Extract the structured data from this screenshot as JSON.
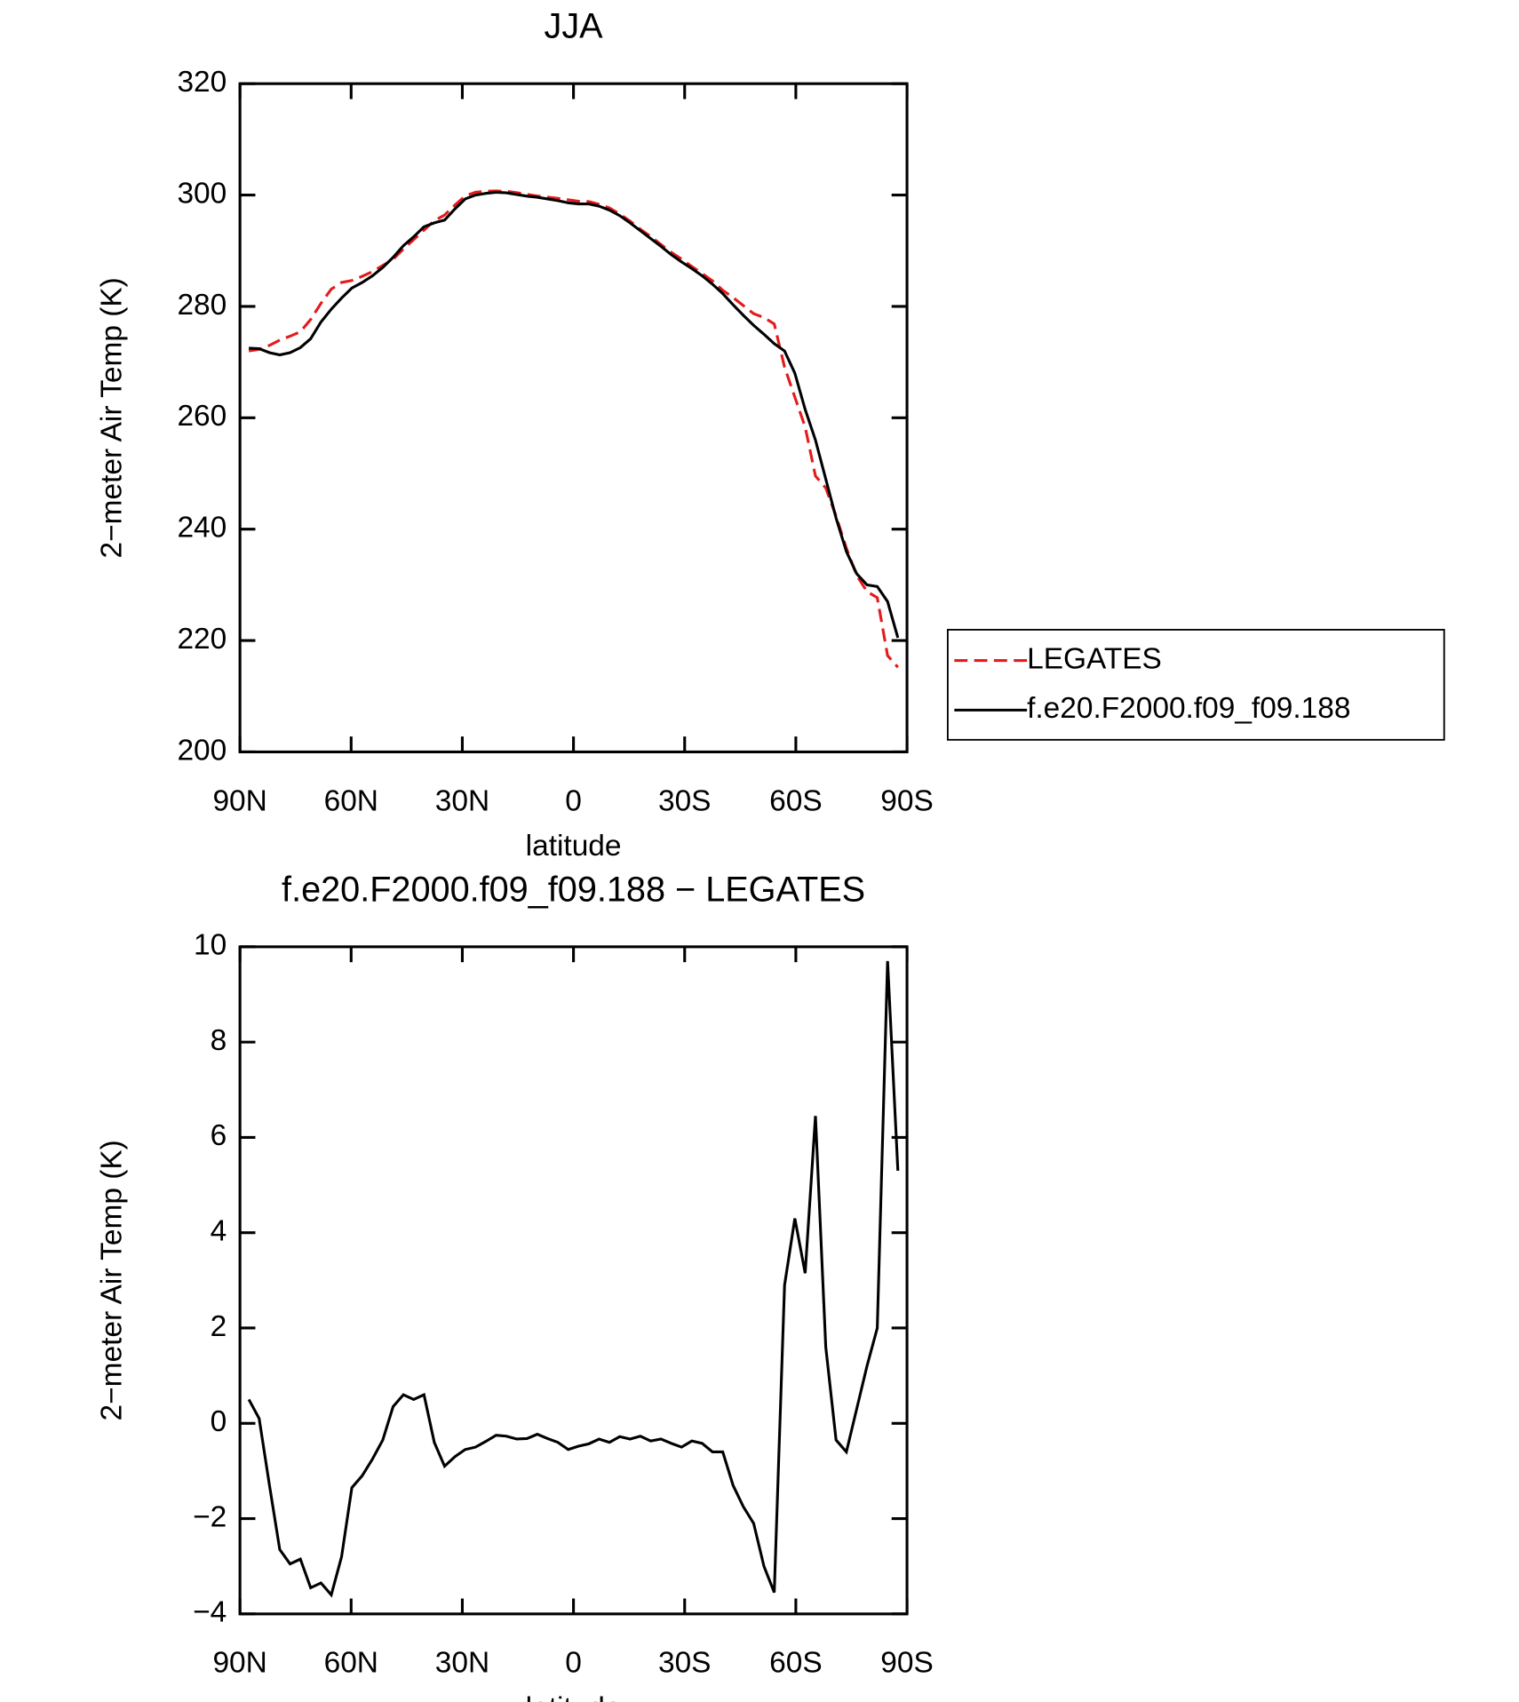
{
  "chart_data": [
    {
      "type": "line",
      "title": "JJA",
      "xlabel": "latitude",
      "ylabel": "2−meter Air Temp (K)",
      "x": [
        87.6,
        84.82,
        82.04,
        79.26,
        76.48,
        73.7,
        70.92,
        68.14,
        65.36,
        62.58,
        59.8,
        57.02,
        54.24,
        51.46,
        48.68,
        45.9,
        43.12,
        40.34,
        37.56,
        34.78,
        32,
        29.22,
        26.44,
        23.66,
        20.88,
        18.1,
        15.32,
        12.54,
        9.76,
        6.98,
        4.2,
        1.42,
        -1.36,
        -4.14,
        -6.92,
        -9.7,
        -12.48,
        -15.26,
        -18.04,
        -20.82,
        -23.6,
        -26.38,
        -29.16,
        -31.94,
        -34.72,
        -37.5,
        -40.28,
        -43.06,
        -45.84,
        -48.62,
        -51.4,
        -54.18,
        -56.96,
        -59.74,
        -62.52,
        -65.3,
        -68.08,
        -70.86,
        -73.64,
        -76.42,
        -79.2,
        -81.98,
        -84.76,
        -87.54
      ],
      "series": [
        {
          "name": "LEGATES",
          "color": "#e41a1c",
          "linestyle": "dashed",
          "values": [
            272.0,
            272.3,
            273.0,
            273.95,
            274.65,
            275.45,
            277.65,
            280.55,
            283.1,
            284.3,
            284.65,
            285.4,
            286.25,
            287.35,
            288.45,
            290.3,
            292.0,
            293.7,
            295.4,
            296.4,
            298.2,
            299.85,
            300.5,
            300.68,
            300.75,
            300.67,
            300.43,
            300.12,
            299.83,
            299.62,
            299.4,
            299.15,
            298.88,
            298.83,
            298.33,
            297.7,
            296.58,
            295.33,
            293.87,
            292.57,
            291.13,
            289.72,
            288.5,
            287.17,
            285.92,
            284.6,
            282.9,
            281.6,
            280.15,
            278.7,
            278.0,
            276.85,
            269.1,
            263.7,
            258.35,
            249.55,
            247.4,
            242.35,
            236.6,
            231.7,
            228.8,
            227.7,
            217.3,
            215.2
          ]
        },
        {
          "name": "f.e20.F2000.f09_f09.188",
          "color": "#000000",
          "linestyle": "solid",
          "values": [
            272.5,
            272.4,
            271.7,
            271.3,
            271.7,
            272.6,
            274.2,
            277.2,
            279.5,
            281.5,
            283.3,
            284.3,
            285.5,
            287,
            288.8,
            290.9,
            292.5,
            294.3,
            295,
            295.5,
            297.5,
            299.3,
            300,
            300.3,
            300.5,
            300.4,
            300.1,
            299.8,
            299.6,
            299.3,
            299,
            298.6,
            298.4,
            298.4,
            298,
            297.3,
            296.3,
            295,
            293.6,
            292.2,
            290.8,
            289.3,
            288,
            286.8,
            285.5,
            284,
            282.3,
            280.3,
            278.4,
            276.6,
            275,
            273.3,
            272,
            268,
            261.5,
            256,
            249,
            242,
            236,
            232,
            230,
            229.7,
            227,
            220.5
          ]
        }
      ],
      "xlim": [
        90,
        -90
      ],
      "xticks": [
        {
          "value": 90,
          "label": "90N"
        },
        {
          "value": 60,
          "label": "60N"
        },
        {
          "value": 30,
          "label": "30N"
        },
        0,
        {
          "value": -30,
          "label": "30S"
        },
        {
          "value": -60,
          "label": "60S"
        },
        {
          "value": -90,
          "label": "90S"
        }
      ],
      "ylim": [
        200,
        320
      ],
      "yticks": [
        200,
        220,
        240,
        260,
        280,
        300,
        320
      ],
      "legend": "outside right"
    },
    {
      "type": "line",
      "title": "f.e20.F2000.f09_f09.188 − LEGATES",
      "xlabel": "latitude",
      "ylabel": "2−meter Air Temp (K)",
      "x": [
        87.6,
        84.82,
        82.04,
        79.26,
        76.48,
        73.7,
        70.92,
        68.14,
        65.36,
        62.58,
        59.8,
        57.02,
        54.24,
        51.46,
        48.68,
        45.9,
        43.12,
        40.34,
        37.56,
        34.78,
        32,
        29.22,
        26.44,
        23.66,
        20.88,
        18.1,
        15.32,
        12.54,
        9.76,
        6.98,
        4.2,
        1.42,
        -1.36,
        -4.14,
        -6.92,
        -9.7,
        -12.48,
        -15.26,
        -18.04,
        -20.82,
        -23.6,
        -26.38,
        -29.16,
        -31.94,
        -34.72,
        -37.5,
        -40.28,
        -43.06,
        -45.84,
        -48.62,
        -51.4,
        -54.18,
        -56.96,
        -59.74,
        -62.52,
        -65.3,
        -68.08,
        -70.86,
        -73.64,
        -76.42,
        -79.2,
        -81.98,
        -84.76,
        -87.54
      ],
      "series": [
        {
          "color": "#000000",
          "linestyle": "solid",
          "values": [
            0.5,
            0.1,
            -1.3,
            -2.65,
            -2.95,
            -2.85,
            -3.45,
            -3.35,
            -3.6,
            -2.8,
            -1.35,
            -1.1,
            -0.75,
            -0.35,
            0.35,
            0.6,
            0.5,
            0.6,
            -0.4,
            -0.9,
            -0.7,
            -0.55,
            -0.5,
            -0.38,
            -0.25,
            -0.27,
            -0.33,
            -0.32,
            -0.23,
            -0.32,
            -0.4,
            -0.55,
            -0.48,
            -0.43,
            -0.33,
            -0.4,
            -0.28,
            -0.33,
            -0.27,
            -0.37,
            -0.33,
            -0.42,
            -0.5,
            -0.37,
            -0.42,
            -0.6,
            -0.6,
            -1.3,
            -1.75,
            -2.1,
            -3.0,
            -3.55,
            2.9,
            4.3,
            3.15,
            6.45,
            1.6,
            -0.35,
            -0.6,
            0.3,
            1.2,
            2.0,
            9.7,
            5.3
          ]
        }
      ],
      "xlim": [
        90,
        -90
      ],
      "xticks": [
        {
          "value": 90,
          "label": "90N"
        },
        {
          "value": 60,
          "label": "60N"
        },
        {
          "value": 30,
          "label": "30N"
        },
        0,
        {
          "value": -30,
          "label": "30S"
        },
        {
          "value": -60,
          "label": "60S"
        },
        {
          "value": -90,
          "label": "90S"
        }
      ],
      "ylim": [
        -4,
        10
      ],
      "yticks": [
        {
          "value": -4,
          "label": "−4"
        },
        {
          "value": -2,
          "label": "−2"
        },
        0,
        2,
        4,
        6,
        8,
        10
      ]
    }
  ]
}
